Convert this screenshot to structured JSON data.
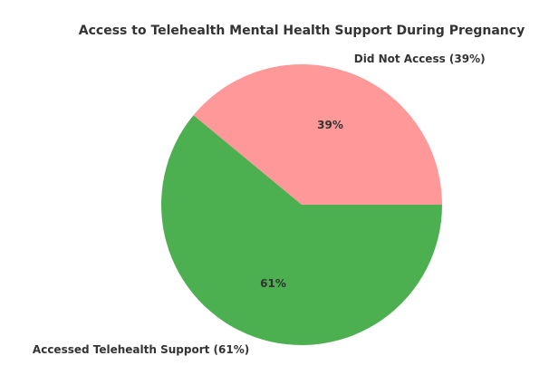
{
  "chart_data": {
    "type": "pie",
    "title": "Access to Telehealth Mental Health Support During Pregnancy",
    "labels": [
      "Did Not Access (39%)",
      "Accessed Telehealth Support (61%)"
    ],
    "values": [
      39,
      61
    ],
    "value_labels": [
      "39%",
      "61%"
    ],
    "colors": [
      "#ff9999",
      "#4caf50"
    ]
  }
}
